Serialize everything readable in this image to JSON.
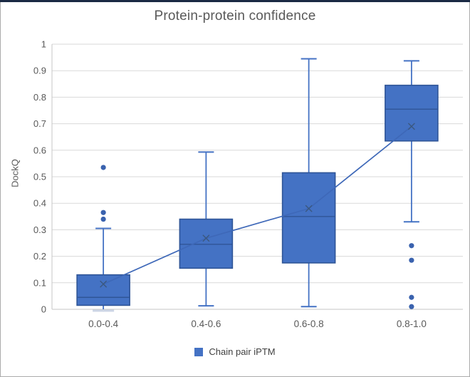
{
  "frame": {
    "top_strip_color": "#1B2A44",
    "border_color": "#ABABAB",
    "background": "#FFFFFF"
  },
  "chart_data": {
    "type": "boxplot",
    "title": "Protein-protein confidence",
    "xlabel": "",
    "ylabel": "DockQ",
    "ylim": [
      0,
      1
    ],
    "ytick_step": 0.1,
    "ytick_labels": [
      "0",
      "0.1",
      "0.2",
      "0.3",
      "0.4",
      "0.5",
      "0.6",
      "0.7",
      "0.8",
      "0.9",
      "1"
    ],
    "grid": true,
    "legend_label": "Chain pair iPTM",
    "legend_position": "bottom",
    "categories": [
      "0.0-0.4",
      "0.4-0.6",
      "0.6-0.8",
      "0.8-1.0"
    ],
    "boxes": [
      {
        "category": "0.0-0.4",
        "whisker_low": 0.0,
        "q1": 0.015,
        "median": 0.045,
        "q3": 0.13,
        "whisker_high": 0.305,
        "mean": 0.095,
        "outliers": [
          0.535,
          0.365,
          0.34
        ]
      },
      {
        "category": "0.4-0.6",
        "whisker_low": 0.013,
        "q1": 0.155,
        "median": 0.245,
        "q3": 0.34,
        "whisker_high": 0.593,
        "mean": 0.268,
        "outliers": []
      },
      {
        "category": "0.6-0.8",
        "whisker_low": 0.01,
        "q1": 0.175,
        "median": 0.35,
        "q3": 0.515,
        "whisker_high": 0.945,
        "mean": 0.38,
        "outliers": []
      },
      {
        "category": "0.8-1.0",
        "whisker_low": 0.33,
        "q1": 0.635,
        "median": 0.755,
        "q3": 0.845,
        "whisker_high": 0.937,
        "mean": 0.69,
        "outliers": [
          0.24,
          0.185,
          0.045,
          0.01
        ]
      }
    ],
    "mean_line": [
      0.095,
      0.268,
      0.38,
      0.69
    ],
    "mean_marker": "x"
  },
  "colors": {
    "box_fill": "#4472C4",
    "box_border": "#2F5597",
    "median": "#2F5597",
    "whisker": "#4472C4",
    "whisker_cap_muted": "#CDD6E6",
    "mean_marker": "#3B5880",
    "mean_line": "#3E68B8",
    "outlier": "#3A62AE",
    "gridline": "#D9D9D9",
    "axis_line": "#C6C6C6",
    "tick_text": "#595959",
    "title_text": "#595959",
    "legend_text": "#404040"
  }
}
